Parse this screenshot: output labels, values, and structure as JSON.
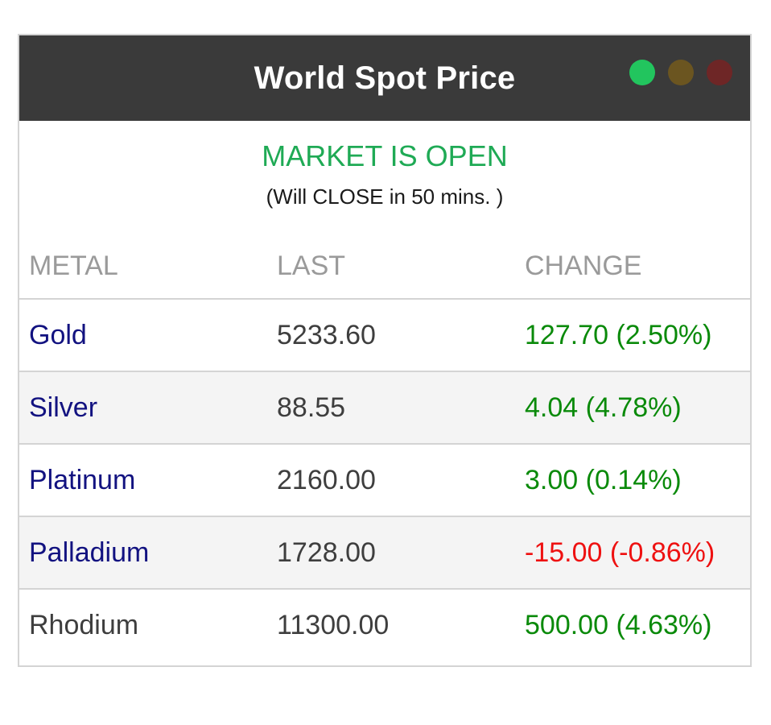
{
  "widget": {
    "title": "World Spot Price",
    "lights": [
      {
        "name": "green-light",
        "color": "#22c55e"
      },
      {
        "name": "yellow-light",
        "color": "#6b5520"
      },
      {
        "name": "red-light",
        "color": "#6e2626"
      }
    ]
  },
  "status": {
    "main": "MARKET IS OPEN",
    "main_color": "#1faa55",
    "sub": "(Will CLOSE in 50 mins. )"
  },
  "table": {
    "headers": {
      "metal": "METAL",
      "last": "LAST",
      "change": "CHANGE"
    },
    "rows": [
      {
        "metal": "Gold",
        "last": "5233.60",
        "change": "127.70 (2.50%)",
        "metal_color": "#121280",
        "change_color": "#0a8a0a",
        "bg": "#ffffff"
      },
      {
        "metal": "Silver",
        "last": "88.55",
        "change": "4.04 (4.78%)",
        "metal_color": "#121280",
        "change_color": "#0a8a0a",
        "bg": "#f4f4f4"
      },
      {
        "metal": "Platinum",
        "last": "2160.00",
        "change": "3.00 (0.14%)",
        "metal_color": "#121280",
        "change_color": "#0a8a0a",
        "bg": "#ffffff"
      },
      {
        "metal": "Palladium",
        "last": "1728.00",
        "change": "-15.00 (-0.86%)",
        "metal_color": "#121280",
        "change_color": "#ee1111",
        "bg": "#f4f4f4"
      },
      {
        "metal": "Rhodium",
        "last": "11300.00",
        "change": "500.00 (4.63%)",
        "metal_color": "#3e3e3e",
        "change_color": "#0a8a0a",
        "bg": "#ffffff"
      }
    ]
  }
}
